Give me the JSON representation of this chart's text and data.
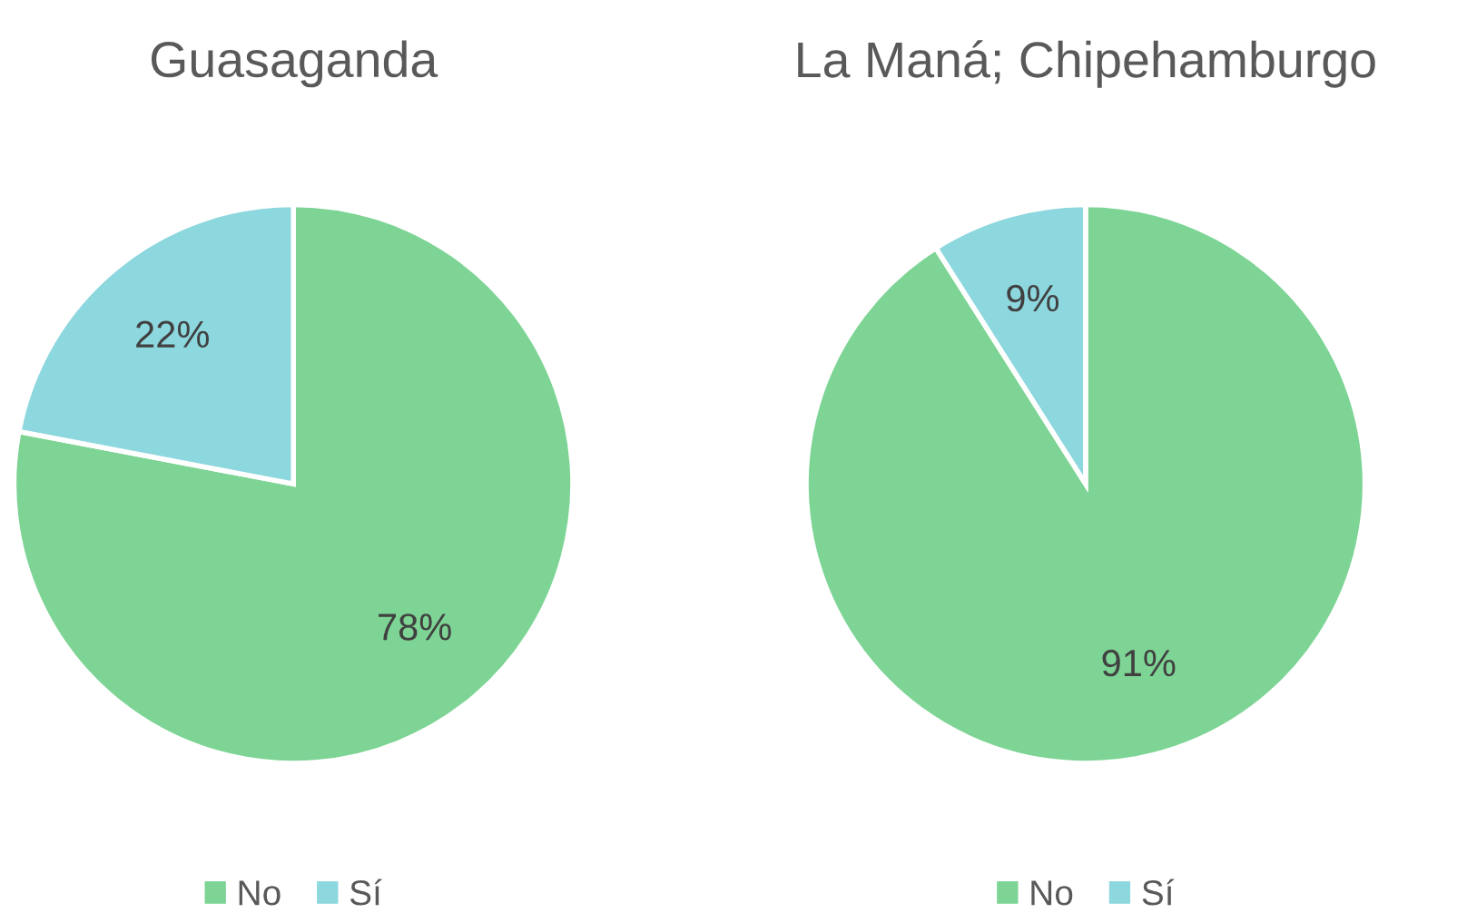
{
  "chart_data": [
    {
      "type": "pie",
      "title": "Guasaganda",
      "categories": [
        "No",
        "Sí"
      ],
      "values": [
        78,
        22
      ],
      "value_labels": [
        "78%",
        "22%"
      ],
      "colors": [
        "#7dd494",
        "#8dd7df"
      ],
      "legend": "bottom"
    },
    {
      "type": "pie",
      "title": "La Maná; Chipehamburgo",
      "categories": [
        "No",
        "Sí"
      ],
      "values": [
        91,
        9
      ],
      "value_labels": [
        "91%",
        "9%"
      ],
      "colors": [
        "#7dd494",
        "#8dd7df"
      ],
      "legend": "bottom"
    }
  ]
}
